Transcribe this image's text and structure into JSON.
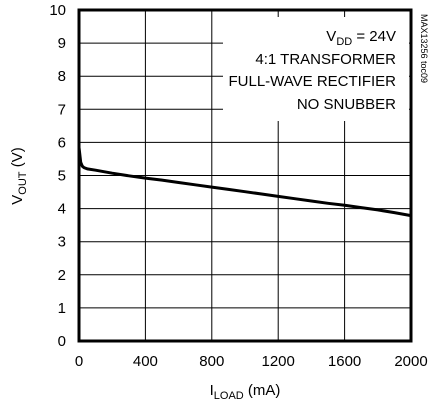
{
  "chart_data": {
    "type": "line",
    "xlabel_main": "I",
    "xlabel_sub": "LOAD",
    "xlabel_unit": " (mA)",
    "ylabel_main": "V",
    "ylabel_sub": "OUT",
    "ylabel_unit": " (V)",
    "xlim": [
      0,
      2000
    ],
    "ylim": [
      0,
      10
    ],
    "x_ticks": [
      0,
      400,
      800,
      1200,
      1600,
      2000
    ],
    "x_tick_labels": [
      "0",
      "400",
      "800",
      "1200",
      "1600",
      "2000"
    ],
    "y_ticks": [
      0,
      1,
      2,
      3,
      4,
      5,
      6,
      7,
      8,
      9,
      10
    ],
    "y_tick_labels": [
      "0",
      "1",
      "2",
      "3",
      "4",
      "5",
      "6",
      "7",
      "8",
      "9",
      "10"
    ],
    "grid": true,
    "annotation": {
      "line1_main": "V",
      "line1_sub": "DD",
      "line1_rest": " = 24V",
      "line2": "4:1 TRANSFORMER",
      "line3": "FULL-WAVE RECTIFIER",
      "line4": "NO SNUBBER"
    },
    "watermark": "MAX13256 toc09",
    "series": [
      {
        "x": [
          0,
          10,
          20,
          30,
          50,
          100,
          200,
          300,
          400,
          500,
          600,
          700,
          800,
          900,
          1000,
          1100,
          1200,
          1300,
          1400,
          1500,
          1600,
          1700,
          1800,
          1900,
          2000
        ],
        "y": [
          5.85,
          5.4,
          5.28,
          5.24,
          5.2,
          5.16,
          5.07,
          4.99,
          4.92,
          4.86,
          4.79,
          4.72,
          4.65,
          4.58,
          4.51,
          4.44,
          4.37,
          4.3,
          4.23,
          4.16,
          4.1,
          4.03,
          3.96,
          3.88,
          3.79
        ]
      }
    ]
  }
}
